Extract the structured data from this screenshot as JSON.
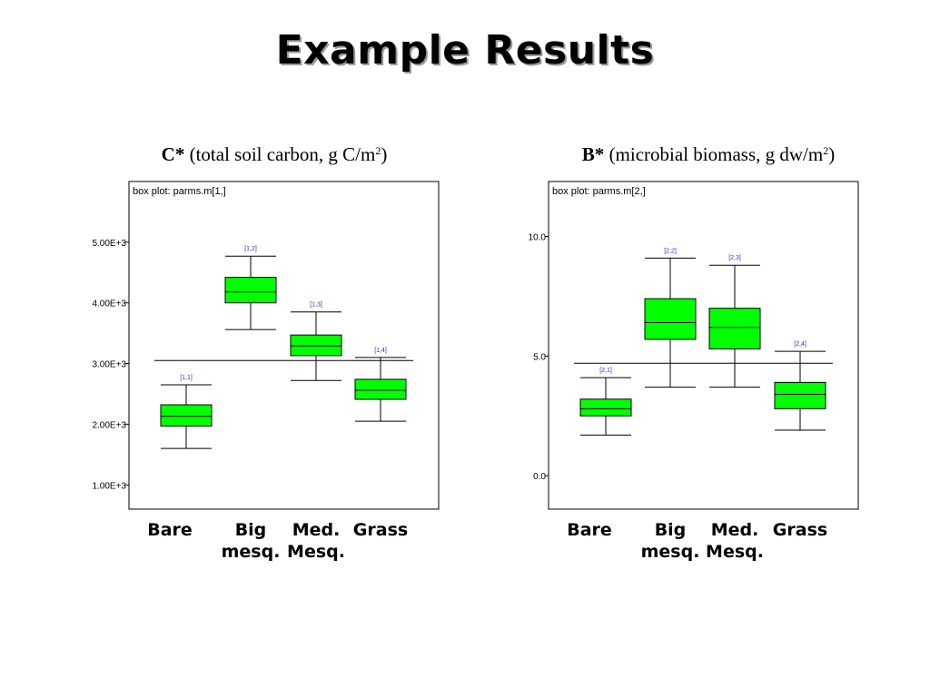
{
  "slide": {
    "title": "Example Results"
  },
  "headings": [
    {
      "symbol": "C*",
      "description": " (total soil carbon, g C/m",
      "superscript": "2",
      "suffix": ")"
    },
    {
      "symbol": "B*",
      "description": " (microbial biomass, g dw/m",
      "superscript": "2",
      "suffix": ")"
    }
  ],
  "chart_data": [
    {
      "type": "boxplot",
      "title": "box plot: parms.m[1,]",
      "yticks": [
        1000,
        2000,
        3000,
        4000,
        5000
      ],
      "ytick_labels": [
        "1.00E+3",
        "2.00E+3",
        "3.00E+3",
        "4.00E+3",
        "5.00E+3"
      ],
      "ylim": [
        600,
        6000
      ],
      "reference_line": 3050,
      "categories": [
        "Bare",
        "Big mesq.",
        "Med. Mesq.",
        "Grass"
      ],
      "category_lines": [
        [
          "Bare"
        ],
        [
          "Big",
          "mesq."
        ],
        [
          "Med.",
          "Mesq."
        ],
        [
          "Grass"
        ]
      ],
      "box_color": "#00ff00",
      "boxes": [
        {
          "label": "[1,1]",
          "whisker_low": 1600,
          "q1": 1970,
          "median": 2130,
          "q3": 2320,
          "whisker_high": 2650
        },
        {
          "label": "[1,2]",
          "whisker_low": 3560,
          "q1": 4000,
          "median": 4180,
          "q3": 4420,
          "whisker_high": 4770
        },
        {
          "label": "[1,3]",
          "whisker_low": 2720,
          "q1": 3130,
          "median": 3290,
          "q3": 3470,
          "whisker_high": 3850
        },
        {
          "label": "[1,4]",
          "whisker_low": 2050,
          "q1": 2410,
          "median": 2560,
          "q3": 2740,
          "whisker_high": 3100
        }
      ]
    },
    {
      "type": "boxplot",
      "title": "box plot: parms.m[2,]",
      "yticks": [
        0,
        5,
        10
      ],
      "ytick_labels": [
        "0.0",
        "5.0",
        "10.0"
      ],
      "ylim": [
        -1.4,
        12.3
      ],
      "reference_line": 4.7,
      "categories": [
        "Bare",
        "Big mesq.",
        "Med. Mesq.",
        "Grass"
      ],
      "category_lines": [
        [
          "Bare"
        ],
        [
          "Big",
          "mesq."
        ],
        [
          "Med.",
          "Mesq."
        ],
        [
          "Grass"
        ]
      ],
      "box_color": "#00ff00",
      "boxes": [
        {
          "label": "[2,1]",
          "whisker_low": 1.7,
          "q1": 2.5,
          "median": 2.8,
          "q3": 3.2,
          "whisker_high": 4.1
        },
        {
          "label": "[2,2]",
          "whisker_low": 3.7,
          "q1": 5.7,
          "median": 6.4,
          "q3": 7.4,
          "whisker_high": 9.1
        },
        {
          "label": "[2,3]",
          "whisker_low": 3.7,
          "q1": 5.3,
          "median": 6.2,
          "q3": 7.0,
          "whisker_high": 8.8
        },
        {
          "label": "[2,4]",
          "whisker_low": 1.9,
          "q1": 2.8,
          "median": 3.4,
          "q3": 3.9,
          "whisker_high": 5.2
        }
      ]
    }
  ]
}
